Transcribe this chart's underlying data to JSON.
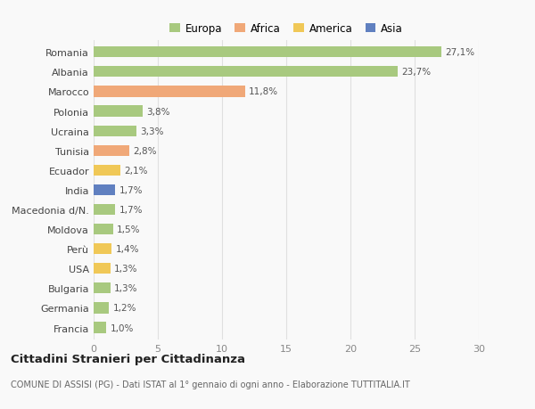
{
  "countries": [
    "Romania",
    "Albania",
    "Marocco",
    "Polonia",
    "Ucraina",
    "Tunisia",
    "Ecuador",
    "India",
    "Macedonia d/N.",
    "Moldova",
    "Perù",
    "USA",
    "Bulgaria",
    "Germania",
    "Francia"
  ],
  "values": [
    27.1,
    23.7,
    11.8,
    3.8,
    3.3,
    2.8,
    2.1,
    1.7,
    1.7,
    1.5,
    1.4,
    1.3,
    1.3,
    1.2,
    1.0
  ],
  "labels": [
    "27,1%",
    "23,7%",
    "11,8%",
    "3,8%",
    "3,3%",
    "2,8%",
    "2,1%",
    "1,7%",
    "1,7%",
    "1,5%",
    "1,4%",
    "1,3%",
    "1,3%",
    "1,2%",
    "1,0%"
  ],
  "colors": [
    "#a8c97f",
    "#a8c97f",
    "#f0a878",
    "#a8c97f",
    "#a8c97f",
    "#f0a878",
    "#f0c857",
    "#6080c0",
    "#a8c97f",
    "#a8c97f",
    "#f0c857",
    "#f0c857",
    "#a8c97f",
    "#a8c97f",
    "#a8c97f"
  ],
  "legend_labels": [
    "Europa",
    "Africa",
    "America",
    "Asia"
  ],
  "legend_colors": [
    "#a8c97f",
    "#f0a878",
    "#f0c857",
    "#6080c0"
  ],
  "title": "Cittadini Stranieri per Cittadinanza",
  "subtitle": "COMUNE DI ASSISI (PG) - Dati ISTAT al 1° gennaio di ogni anno - Elaborazione TUTTITALIA.IT",
  "xlim": [
    0,
    30
  ],
  "xticks": [
    0,
    5,
    10,
    15,
    20,
    25,
    30
  ],
  "background_color": "#f9f9f9",
  "grid_color": "#e0e0e0",
  "bar_height": 0.55,
  "label_fontsize": 7.5,
  "ytick_fontsize": 8,
  "xtick_fontsize": 8,
  "legend_fontsize": 8.5,
  "title_fontsize": 9.5,
  "subtitle_fontsize": 7
}
